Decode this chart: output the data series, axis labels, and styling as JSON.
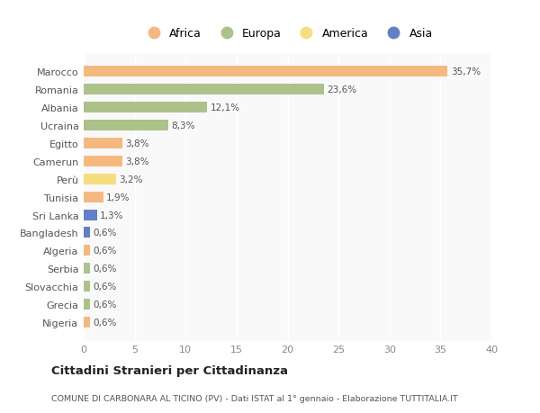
{
  "categories": [
    "Marocco",
    "Romania",
    "Albania",
    "Ucraina",
    "Egitto",
    "Camerun",
    "Perù",
    "Tunisia",
    "Sri Lanka",
    "Bangladesh",
    "Algeria",
    "Serbia",
    "Slovacchia",
    "Grecia",
    "Nigeria"
  ],
  "values": [
    35.7,
    23.6,
    12.1,
    8.3,
    3.8,
    3.8,
    3.2,
    1.9,
    1.3,
    0.6,
    0.6,
    0.6,
    0.6,
    0.6,
    0.6
  ],
  "labels": [
    "35,7%",
    "23,6%",
    "12,1%",
    "8,3%",
    "3,8%",
    "3,8%",
    "3,2%",
    "1,9%",
    "1,3%",
    "0,6%",
    "0,6%",
    "0,6%",
    "0,6%",
    "0,6%",
    "0,6%"
  ],
  "colors": [
    "#f5b97f",
    "#adc18a",
    "#adc18a",
    "#adc18a",
    "#f5b97f",
    "#f5b97f",
    "#f5de80",
    "#f5b97f",
    "#6080c8",
    "#6080c8",
    "#f5b97f",
    "#adc18a",
    "#adc18a",
    "#adc18a",
    "#f5b97f"
  ],
  "legend_labels": [
    "Africa",
    "Europa",
    "America",
    "Asia"
  ],
  "legend_colors": [
    "#f5b97f",
    "#adc18a",
    "#f5de80",
    "#6080c8"
  ],
  "xlim": [
    0,
    40
  ],
  "xticks": [
    0,
    5,
    10,
    15,
    20,
    25,
    30,
    35,
    40
  ],
  "title": "Cittadini Stranieri per Cittadinanza",
  "subtitle": "COMUNE DI CARBONARA AL TICINO (PV) - Dati ISTAT al 1° gennaio - Elaborazione TUTTITALIA.IT",
  "bg_color": "#ffffff",
  "plot_bg_color": "#f9f9f9",
  "bar_height": 0.6,
  "label_fontsize": 7.5,
  "ytick_fontsize": 8.0,
  "xtick_fontsize": 8.0
}
